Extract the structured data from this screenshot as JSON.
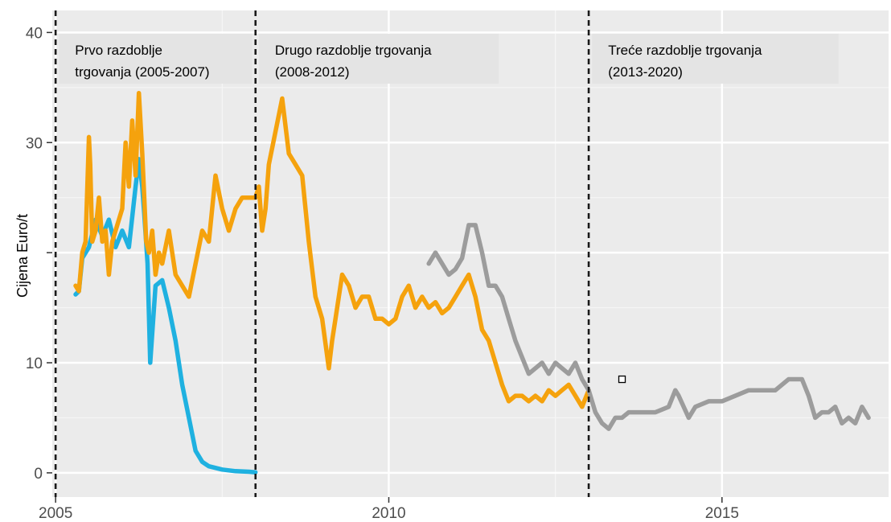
{
  "chart_data": {
    "type": "line",
    "title": "",
    "xlabel": "",
    "ylabel": "Cijena Euro/t",
    "xlim": [
      2004.95,
      2017.5
    ],
    "ylim": [
      -2.2,
      42
    ],
    "x_ticks": [
      {
        "value": 2005,
        "label": "2005"
      },
      {
        "value": 2010,
        "label": "2010"
      },
      {
        "value": 2015,
        "label": "2015"
      }
    ],
    "y_ticks": [
      {
        "value": 0,
        "label": "0"
      },
      {
        "value": 10,
        "label": "10"
      },
      {
        "value": 20,
        "label": ""
      },
      {
        "value": 30,
        "label": "30"
      },
      {
        "value": 40,
        "label": "40"
      }
    ],
    "x_minor_grid": [
      2007.5,
      2012.5
    ],
    "y_minor_grid": [
      5,
      15,
      25,
      35
    ],
    "grid": true,
    "background": "#ebebeb",
    "vlines": [
      2005,
      2008,
      2013
    ],
    "periods": [
      {
        "lines": [
          "Prvo razdoblje",
          "trgovanja (2005-2007)"
        ],
        "x_from": 2005.05,
        "x_to": 2007.95
      },
      {
        "lines": [
          "Drugo razdoblje trgovanja",
          "(2008-2012)"
        ],
        "x_from": 2008.05,
        "x_to": 2011.65
      },
      {
        "lines": [
          "Treće razdoblje trgovanja",
          "(2013-2020)"
        ],
        "x_from": 2013.05,
        "x_to": 2016.75
      }
    ],
    "series": [
      {
        "color": "#1fb1e0",
        "x": [
          2005.3,
          2005.35,
          2005.4,
          2005.5,
          2005.6,
          2005.7,
          2005.8,
          2005.9,
          2006.0,
          2006.1,
          2006.2,
          2006.25,
          2006.3,
          2006.33,
          2006.38,
          2006.42,
          2006.5,
          2006.6,
          2006.7,
          2006.8,
          2006.9,
          2007.0,
          2007.1,
          2007.2,
          2007.3,
          2007.5,
          2007.7,
          2007.9,
          2008.0
        ],
        "y": [
          16.2,
          16.5,
          19.5,
          20.5,
          23,
          21.5,
          23,
          20.5,
          22,
          20.5,
          26,
          28.5,
          26,
          23.5,
          19,
          10,
          17,
          17.5,
          15,
          12,
          8,
          5,
          2,
          1,
          0.6,
          0.3,
          0.15,
          0.1,
          0.05
        ]
      },
      {
        "color": "#f5a20d",
        "x": [
          2005.3,
          2005.35,
          2005.4,
          2005.45,
          2005.5,
          2005.52,
          2005.55,
          2005.6,
          2005.65,
          2005.7,
          2005.75,
          2005.8,
          2005.85,
          2005.9,
          2006.0,
          2006.05,
          2006.1,
          2006.15,
          2006.2,
          2006.25,
          2006.3,
          2006.33,
          2006.36,
          2006.4,
          2006.45,
          2006.5,
          2006.55,
          2006.6,
          2006.7,
          2006.8,
          2006.9,
          2007.0,
          2007.1,
          2007.2,
          2007.3,
          2007.4,
          2007.5,
          2007.6,
          2007.7,
          2007.8,
          2007.9,
          2008.0,
          2008.05,
          2008.1,
          2008.15,
          2008.2,
          2008.3,
          2008.4,
          2008.5,
          2008.6,
          2008.7,
          2008.8,
          2008.9,
          2009.0,
          2009.1,
          2009.15,
          2009.2,
          2009.3,
          2009.4,
          2009.5,
          2009.6,
          2009.7,
          2009.8,
          2009.9,
          2010.0,
          2010.1,
          2010.2,
          2010.3,
          2010.4,
          2010.5,
          2010.6,
          2010.7,
          2010.8,
          2010.9,
          2011.0,
          2011.1,
          2011.2,
          2011.3,
          2011.4,
          2011.5,
          2011.6,
          2011.7,
          2011.8,
          2011.9,
          2012.0,
          2012.1,
          2012.2,
          2012.3,
          2012.4,
          2012.5,
          2012.6,
          2012.7,
          2012.8,
          2012.9,
          2013.0
        ],
        "y": [
          17,
          16.5,
          20,
          21,
          30.5,
          28,
          21,
          22,
          25,
          21,
          22,
          18,
          21,
          22,
          24,
          30,
          26,
          32,
          27,
          34.5,
          29,
          25,
          21,
          20,
          22,
          18,
          20,
          19,
          22,
          18,
          17,
          16,
          19,
          22,
          21,
          27,
          24,
          22,
          24,
          25,
          25,
          25,
          26,
          22,
          24,
          28,
          31,
          34,
          29,
          28,
          27,
          21,
          16,
          14,
          9.5,
          12,
          14,
          18,
          17,
          15,
          16,
          16,
          14,
          14,
          13.5,
          14,
          16,
          17,
          15,
          16,
          15,
          15.5,
          14.5,
          15,
          16,
          17,
          18,
          16,
          13,
          12,
          10,
          8,
          6.5,
          7,
          7,
          6.5,
          7,
          6.5,
          7.5,
          7,
          7.5,
          8,
          7,
          6,
          7.5
        ]
      },
      {
        "color": "#9c9c9c",
        "x": [
          2010.6,
          2010.7,
          2010.8,
          2010.9,
          2011.0,
          2011.1,
          2011.2,
          2011.3,
          2011.4,
          2011.5,
          2011.6,
          2011.7,
          2011.8,
          2011.9,
          2012.0,
          2012.1,
          2012.2,
          2012.3,
          2012.4,
          2012.5,
          2012.6,
          2012.7,
          2012.8,
          2012.9,
          2013.0,
          2013.1,
          2013.2,
          2013.3,
          2013.4,
          2013.5,
          2013.6,
          2013.8,
          2014.0,
          2014.2,
          2014.3,
          2014.35,
          2014.5,
          2014.6,
          2014.8,
          2015.0,
          2015.2,
          2015.4,
          2015.6,
          2015.8,
          2015.9,
          2016.0,
          2016.1,
          2016.2,
          2016.3,
          2016.4,
          2016.5,
          2016.6,
          2016.7,
          2016.8,
          2016.9,
          2017.0,
          2017.1,
          2017.2
        ],
        "y": [
          19,
          20,
          19,
          18,
          18.5,
          19.5,
          22.5,
          22.5,
          20,
          17,
          17,
          16,
          14,
          12,
          10.5,
          9,
          9.5,
          10,
          9,
          10,
          9.5,
          9,
          10,
          8.5,
          7.5,
          5.5,
          4.5,
          4,
          5,
          5,
          5.5,
          5.5,
          5.5,
          6,
          7.5,
          7,
          5,
          6,
          6.5,
          6.5,
          7,
          7.5,
          7.5,
          7.5,
          8,
          8.5,
          8.5,
          8.5,
          7,
          5,
          5.5,
          5.5,
          6,
          4.5,
          5,
          4.5,
          6,
          5
        ]
      }
    ],
    "marker": {
      "x": 2013.5,
      "y": 8.5
    }
  }
}
